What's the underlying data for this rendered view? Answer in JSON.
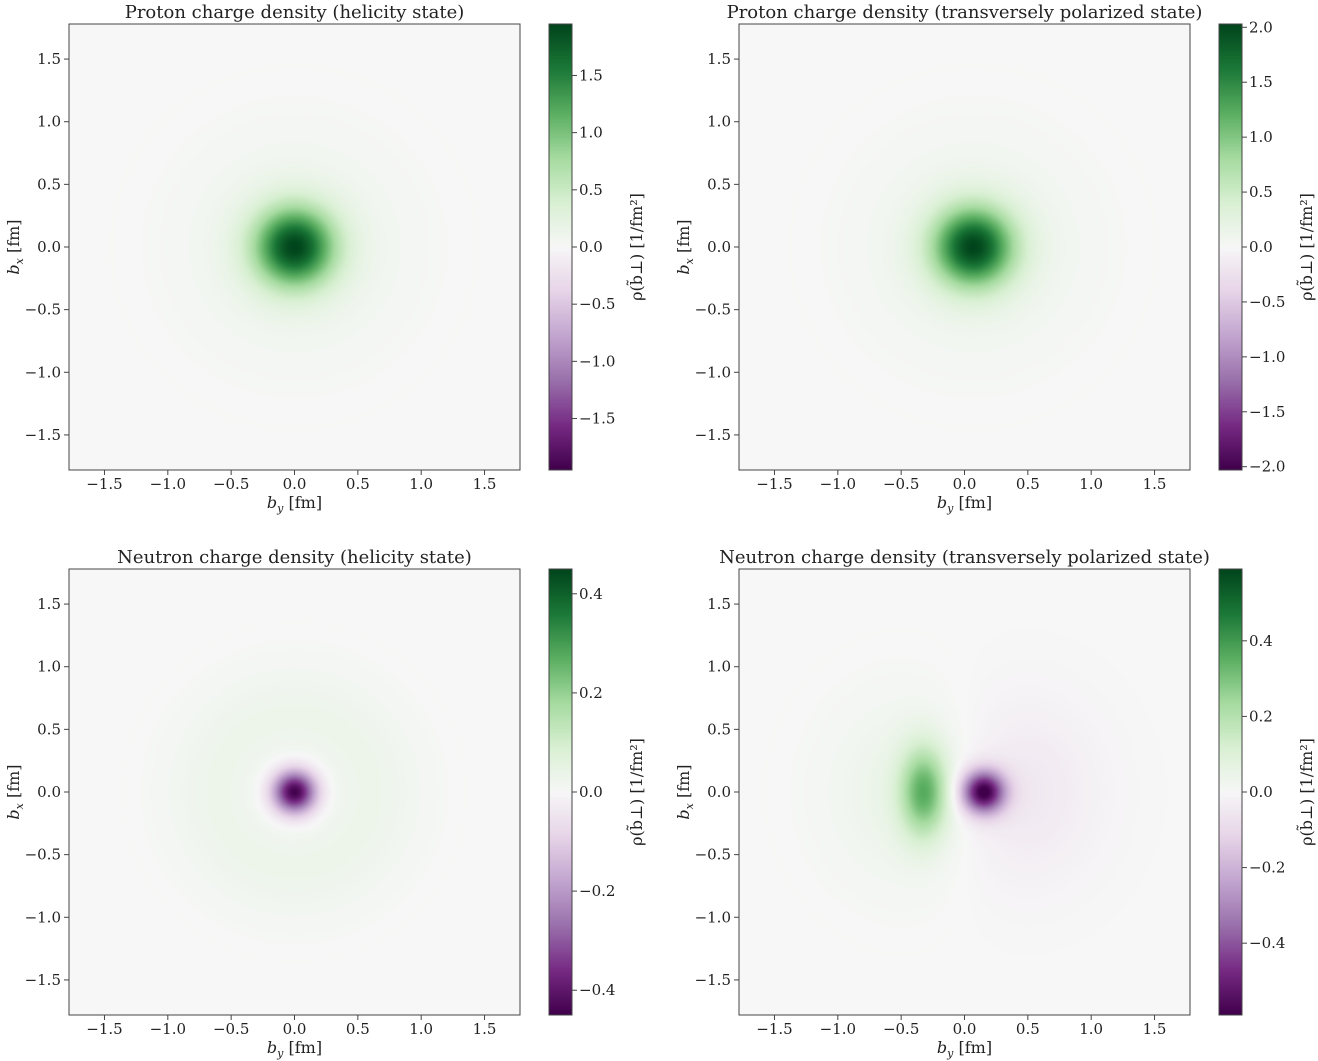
{
  "chart_data": [
    {
      "type": "heatmap",
      "title": "Proton charge density (helicity state)",
      "xlabel_main": "b",
      "xlabel_sub": "y",
      "xlabel_unit": " [fm]",
      "ylabel_main": "b",
      "ylabel_sub": "x",
      "ylabel_unit": " [fm]",
      "xlim": [
        -1.78,
        1.78
      ],
      "ylim": [
        -1.78,
        1.78
      ],
      "xticks": [
        -1.5,
        -1.0,
        -0.5,
        0.0,
        0.5,
        1.0,
        1.5
      ],
      "yticks": [
        -1.5,
        -1.0,
        -0.5,
        0.0,
        0.5,
        1.0,
        1.5
      ],
      "colorbar": {
        "label": "ρ(b̃⊥) [1/fm²]",
        "range": [
          -1.95,
          1.95
        ],
        "ticks": [
          -1.5,
          -1.0,
          -0.5,
          0.0,
          0.5,
          1.0,
          1.5
        ],
        "colormap": "PRGn"
      },
      "density_model": {
        "peak_value": 1.95,
        "center_by": 0.0,
        "center_bx": 0.0,
        "width_fm": 0.22,
        "tail_width_fm": 0.55,
        "tail_fraction": 0.1
      }
    },
    {
      "type": "heatmap",
      "title": "Proton charge density (transversely polarized state)",
      "xlabel_main": "b",
      "xlabel_sub": "y",
      "xlabel_unit": " [fm]",
      "ylabel_main": "b",
      "ylabel_sub": "x",
      "ylabel_unit": " [fm]",
      "xlim": [
        -1.78,
        1.78
      ],
      "ylim": [
        -1.78,
        1.78
      ],
      "xticks": [
        -1.5,
        -1.0,
        -0.5,
        0.0,
        0.5,
        1.0,
        1.5
      ],
      "yticks": [
        -1.5,
        -1.0,
        -0.5,
        0.0,
        0.5,
        1.0,
        1.5
      ],
      "colorbar": {
        "label": "ρ(b̃⊥) [1/fm²]",
        "range": [
          -2.03,
          2.03
        ],
        "ticks": [
          -2.0,
          -1.5,
          -1.0,
          -0.5,
          0.0,
          0.5,
          1.0,
          1.5,
          2.0
        ],
        "colormap": "PRGn"
      },
      "density_model": {
        "peak_value": 2.03,
        "center_by": 0.07,
        "center_bx": 0.0,
        "width_fm": 0.22,
        "tail_width_fm": 0.55,
        "tail_fraction": 0.1
      }
    },
    {
      "type": "heatmap",
      "title": "Neutron charge density (helicity state)",
      "xlabel_main": "b",
      "xlabel_sub": "y",
      "xlabel_unit": " [fm]",
      "ylabel_main": "b",
      "ylabel_sub": "x",
      "ylabel_unit": " [fm]",
      "xlim": [
        -1.78,
        1.78
      ],
      "ylim": [
        -1.78,
        1.78
      ],
      "xticks": [
        -1.5,
        -1.0,
        -0.5,
        0.0,
        0.5,
        1.0,
        1.5
      ],
      "yticks": [
        -1.5,
        -1.0,
        -0.5,
        0.0,
        0.5,
        1.0,
        1.5
      ],
      "colorbar": {
        "label": "ρ(b̃⊥) [1/fm²]",
        "range": [
          -0.45,
          0.45
        ],
        "ticks": [
          -0.4,
          -0.2,
          0.0,
          0.2,
          0.4
        ],
        "colormap": "PRGn"
      },
      "density_model": {
        "core_value": -0.45,
        "core_width_fm": 0.12,
        "ring_value": 0.03,
        "ring_radius_fm": 0.6,
        "ring_width_fm": 0.3
      }
    },
    {
      "type": "heatmap",
      "title": "Neutron charge density (transversely polarized state)",
      "xlabel_main": "b",
      "xlabel_sub": "y",
      "xlabel_unit": " [fm]",
      "ylabel_main": "b",
      "ylabel_sub": "x",
      "ylabel_unit": " [fm]",
      "xlim": [
        -1.78,
        1.78
      ],
      "ylim": [
        -1.78,
        1.78
      ],
      "xticks": [
        -1.5,
        -1.0,
        -0.5,
        0.0,
        0.5,
        1.0,
        1.5
      ],
      "yticks": [
        -1.5,
        -1.0,
        -0.5,
        0.0,
        0.5,
        1.0,
        1.5
      ],
      "colorbar": {
        "label": "ρ(b̃⊥) [1/fm²]",
        "range": [
          -0.59,
          0.59
        ],
        "ticks": [
          -0.4,
          -0.2,
          0.0,
          0.2,
          0.4
        ],
        "colormap": "PRGn"
      },
      "density_model": {
        "neg_value": -0.59,
        "neg_center_by": 0.15,
        "neg_width_fm": 0.12,
        "pos_value": 0.32,
        "pos_center_by": -0.32,
        "pos_width_by_fm": 0.13,
        "pos_width_bx_fm": 0.25,
        "dipole_value": -0.08,
        "dipole_width_fm": 0.5
      }
    }
  ]
}
